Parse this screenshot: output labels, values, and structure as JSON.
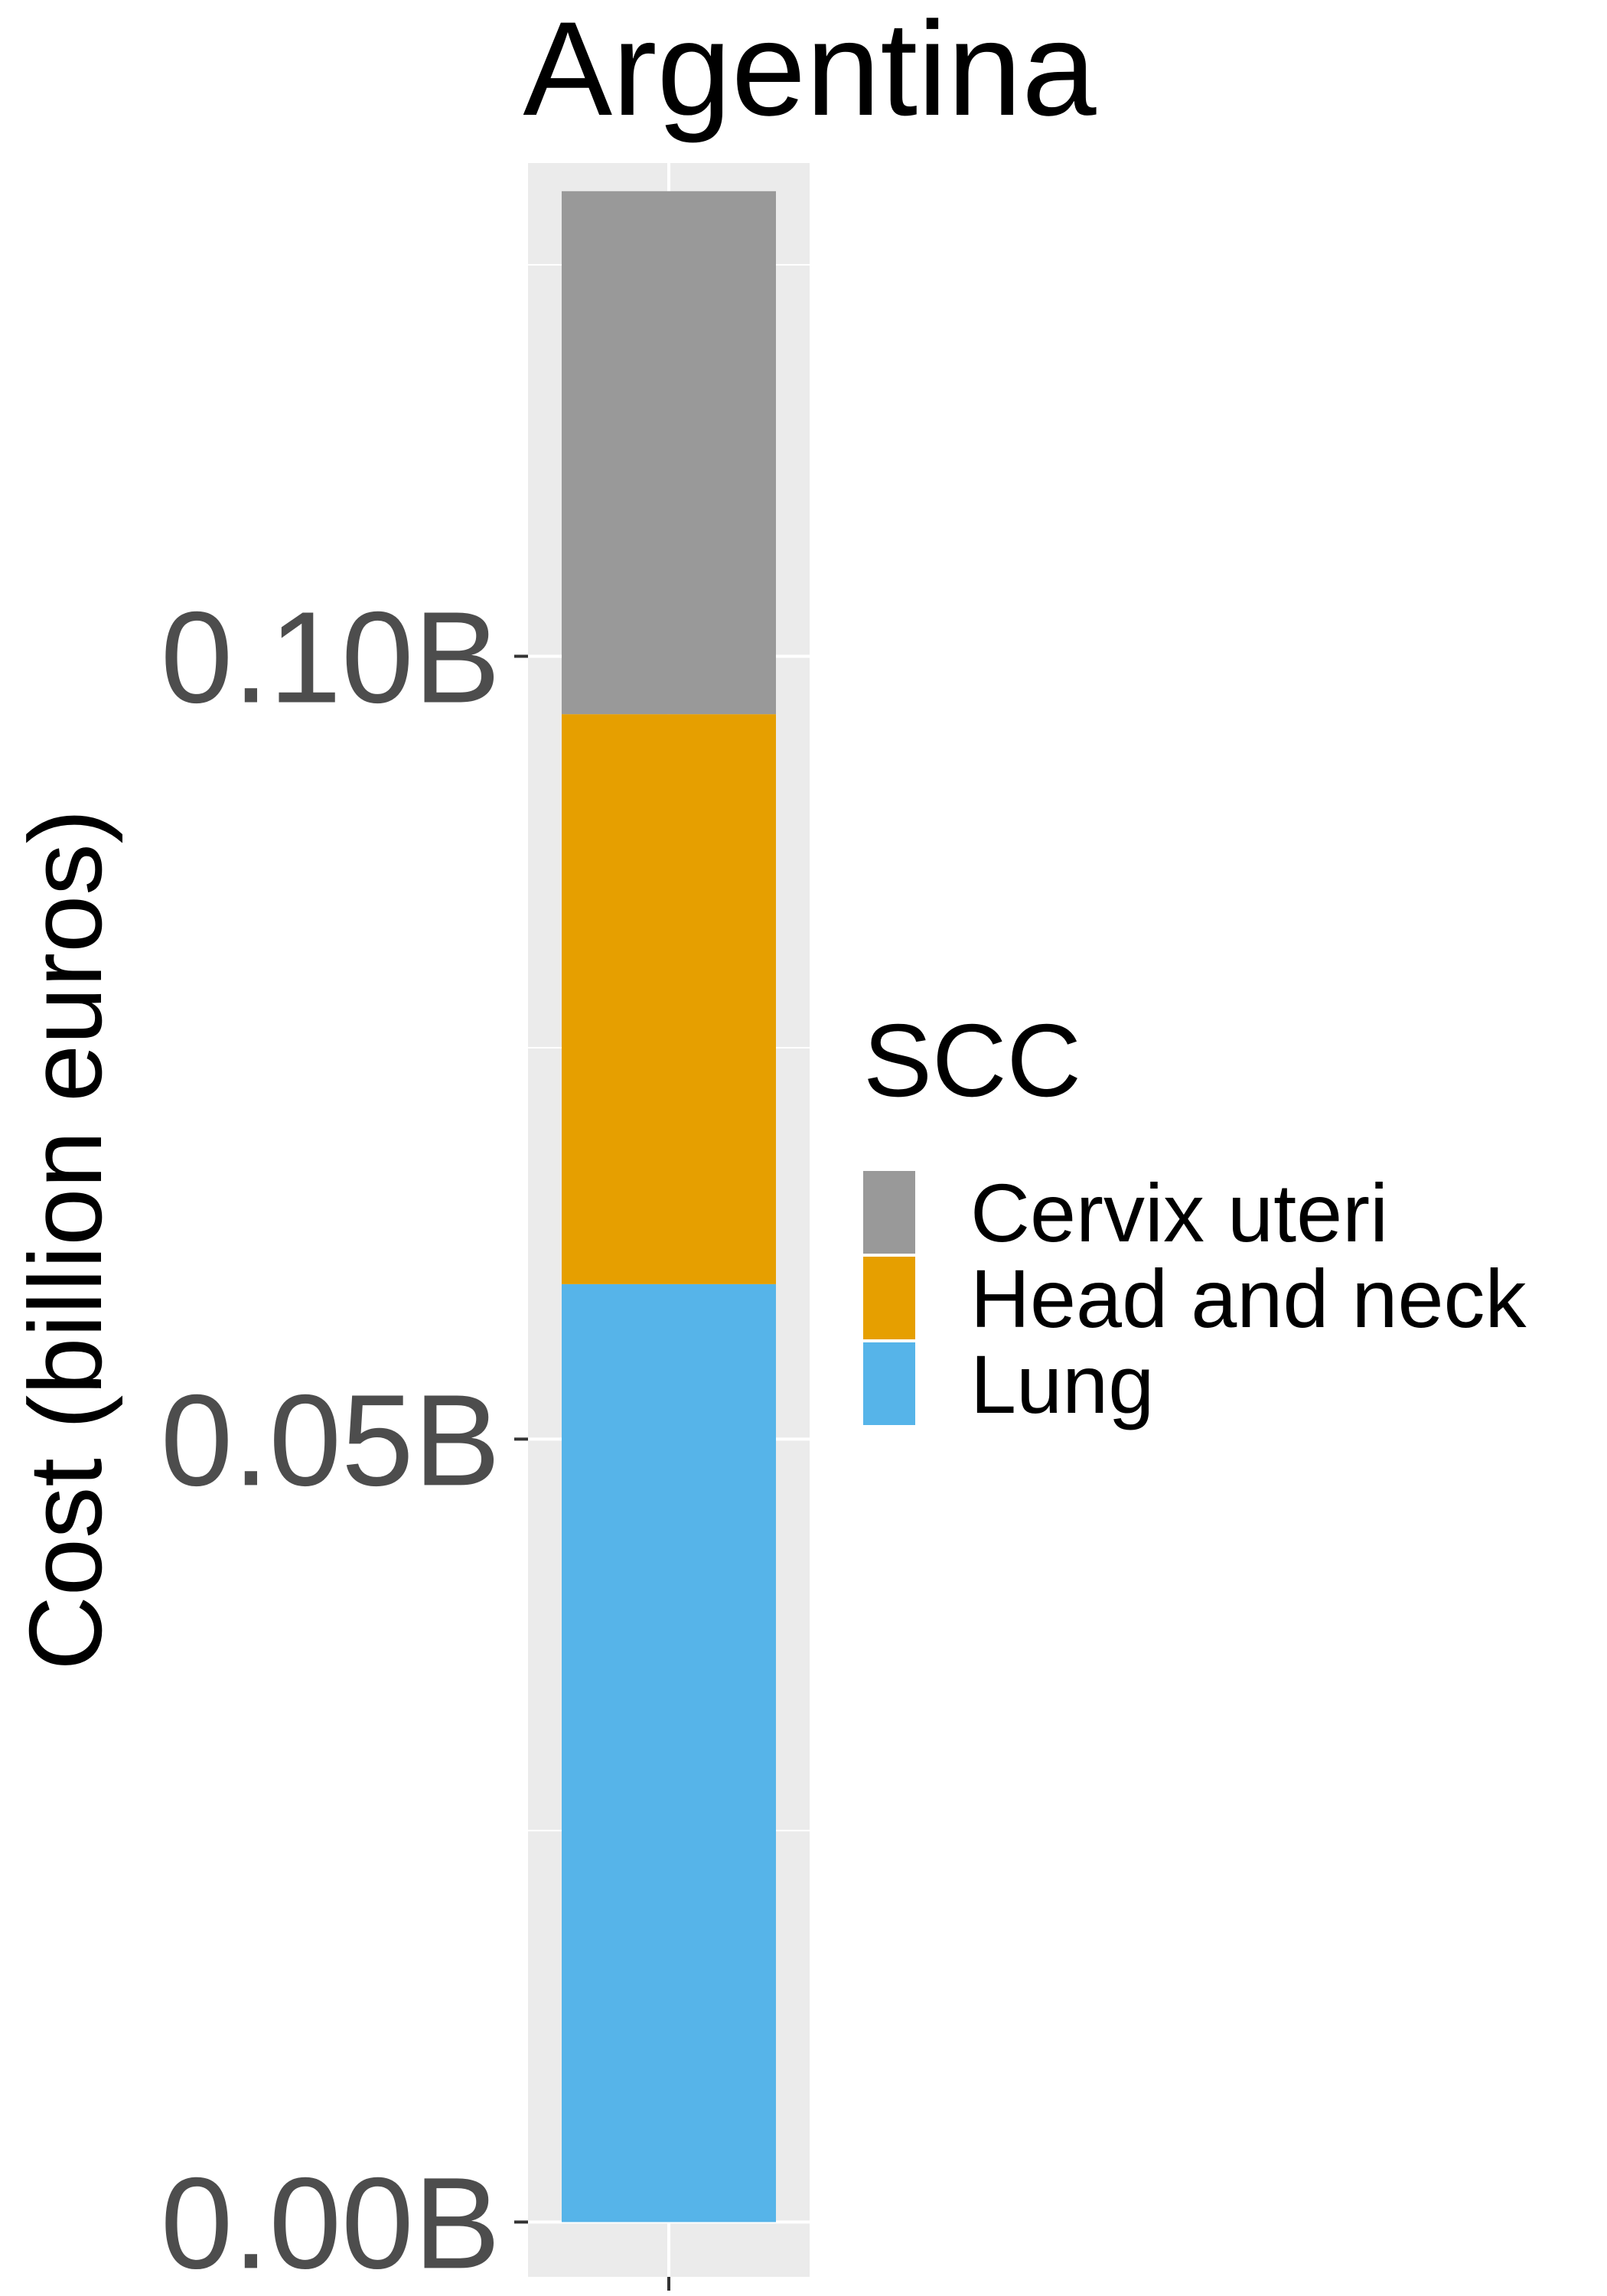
{
  "chart_data": {
    "type": "bar",
    "stacked": true,
    "title": "Argentina",
    "xlabel": "",
    "ylabel": "Cost (billion euros)",
    "ylim": [
      -0.0035,
      0.1315
    ],
    "yticks": [
      0.0,
      0.05,
      0.1
    ],
    "ytick_labels": [
      "0.00B",
      "0.05B",
      "0.10B"
    ],
    "categories": [
      ""
    ],
    "legend": {
      "title": "SCC",
      "position": "right"
    },
    "grid": true,
    "panel_background": "#ebebeb",
    "series": [
      {
        "name": "Lung",
        "color": "#56b4e9",
        "values": [
          0.0599
        ]
      },
      {
        "name": "Head and neck",
        "color": "#e69f00",
        "values": [
          0.0364
        ]
      },
      {
        "name": "Cervix uteri",
        "color": "#999999",
        "values": [
          0.0334
        ]
      }
    ],
    "legend_order": [
      "Cervix uteri",
      "Head and neck",
      "Lung"
    ]
  }
}
